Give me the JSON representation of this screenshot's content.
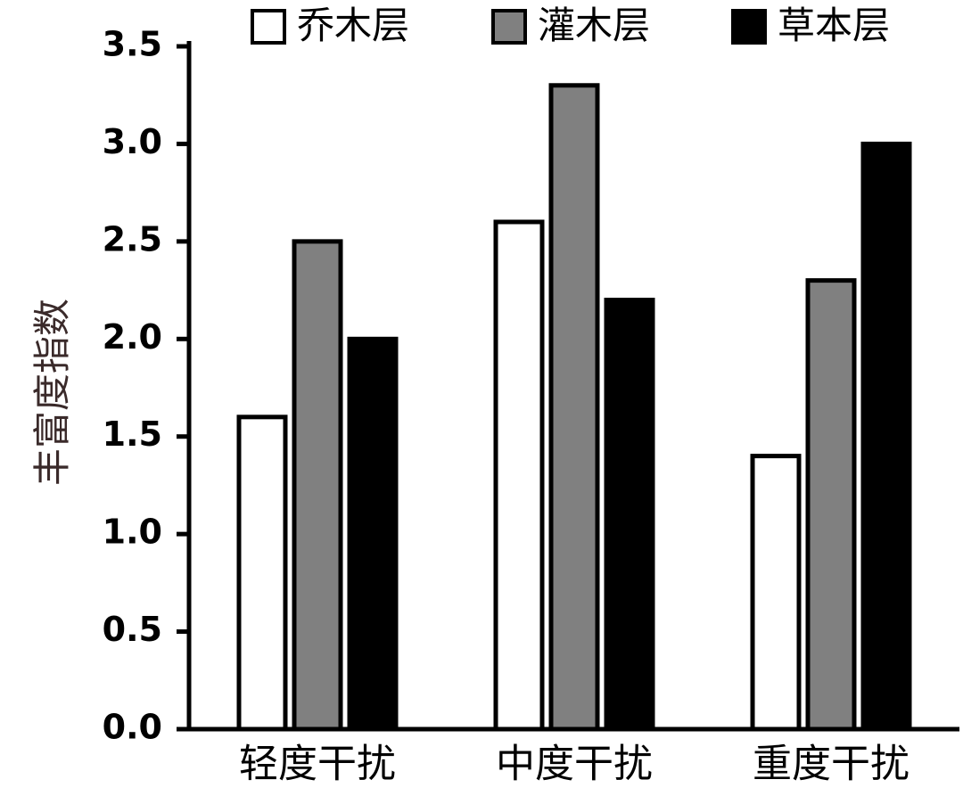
{
  "chart_data": {
    "type": "bar",
    "y_label": "丰富度指数",
    "categories": [
      "轻度干扰",
      "中度干扰",
      "重度干扰"
    ],
    "series": [
      {
        "name": "乔木层",
        "color": "#ffffff",
        "values": [
          1.6,
          2.6,
          1.4
        ]
      },
      {
        "name": "灌木层",
        "color": "#808080",
        "values": [
          2.5,
          3.3,
          2.3
        ]
      },
      {
        "name": "草本层",
        "color": "#000000",
        "values": [
          2.0,
          2.2,
          3.0
        ]
      }
    ],
    "ylim": [
      0,
      3.5
    ],
    "yticks": [
      {
        "value": 0,
        "label": "0.0"
      },
      0.5,
      {
        "value": 1,
        "label": "1.0"
      },
      1.5,
      {
        "value": 2,
        "label": "2.0"
      },
      2.5,
      {
        "value": 3,
        "label": "3.0"
      },
      3.5
    ],
    "legend": "top"
  }
}
